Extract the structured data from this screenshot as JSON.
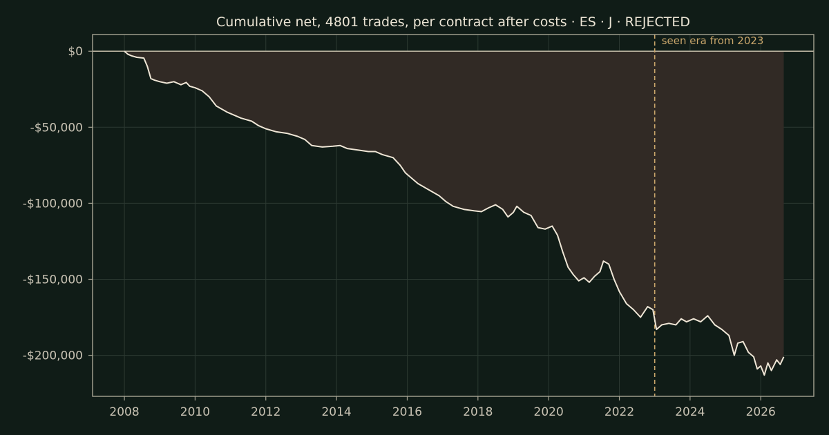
{
  "chart_data": {
    "type": "line",
    "title": "Cumulative net, 4801 trades, per contract after costs  ·  ES · J · REJECTED",
    "xlabel": "",
    "ylabel": "",
    "xlim": [
      2007.1,
      2027.5
    ],
    "ylim": [
      -227000,
      11000
    ],
    "x_ticks": [
      2008,
      2010,
      2012,
      2014,
      2016,
      2018,
      2020,
      2022,
      2024,
      2026
    ],
    "x_tick_labels": [
      "2008",
      "2010",
      "2012",
      "2014",
      "2016",
      "2018",
      "2020",
      "2022",
      "2024",
      "2026"
    ],
    "y_ticks": [
      0,
      -50000,
      -100000,
      -150000,
      -200000
    ],
    "y_tick_labels": [
      "$0",
      "-$50,000",
      "-$100,000",
      "-$150,000",
      "-$200,000"
    ],
    "grid": true,
    "baseline": 0,
    "annotation": {
      "x": 2023.0,
      "text": "seen era from 2023"
    },
    "colors": {
      "background": "#101c17",
      "line": "#efe6d6",
      "fill": "#312a25",
      "grid": "#2c3932",
      "axes": "#a8a595",
      "annotation": "#c9a66b"
    },
    "series": [
      {
        "x": [
          2008.0,
          2008.1,
          2008.2,
          2008.35,
          2008.55,
          2008.65,
          2008.75,
          2008.85,
          2009.0,
          2009.2,
          2009.4,
          2009.6,
          2009.75,
          2009.85,
          2010.0,
          2010.2,
          2010.4,
          2010.6,
          2010.75,
          2010.9,
          2011.1,
          2011.3,
          2011.6,
          2011.8,
          2012.0,
          2012.3,
          2012.6,
          2012.9,
          2013.1,
          2013.3,
          2013.6,
          2013.9,
          2014.1,
          2014.3,
          2014.6,
          2014.9,
          2015.1,
          2015.3,
          2015.6,
          2015.8,
          2015.95,
          2016.1,
          2016.3,
          2016.6,
          2016.9,
          2017.1,
          2017.3,
          2017.6,
          2017.9,
          2018.1,
          2018.3,
          2018.5,
          2018.7,
          2018.85,
          2019.0,
          2019.1,
          2019.3,
          2019.5,
          2019.7,
          2019.9,
          2020.1,
          2020.25,
          2020.4,
          2020.55,
          2020.7,
          2020.85,
          2021.0,
          2021.15,
          2021.3,
          2021.45,
          2021.55,
          2021.7,
          2021.85,
          2022.0,
          2022.2,
          2022.4,
          2022.6,
          2022.8,
          2022.95,
          2023.05,
          2023.2,
          2023.4,
          2023.6,
          2023.75,
          2023.9,
          2024.1,
          2024.3,
          2024.5,
          2024.7,
          2024.9,
          2025.1,
          2025.25,
          2025.35,
          2025.5,
          2025.65,
          2025.8,
          2025.9,
          2026.0,
          2026.1,
          2026.2,
          2026.3,
          2026.45,
          2026.55,
          2026.65
        ],
        "y": [
          0,
          -2000,
          -3000,
          -4000,
          -4500,
          -10000,
          -18000,
          -19000,
          -20000,
          -21000,
          -20000,
          -22000,
          -20500,
          -23000,
          -24000,
          -26000,
          -30000,
          -36000,
          -38000,
          -40000,
          -42000,
          -44000,
          -46000,
          -49000,
          -51000,
          -53000,
          -54000,
          -56000,
          -58000,
          -62000,
          -63000,
          -62500,
          -62000,
          -64000,
          -65000,
          -66000,
          -66000,
          -68000,
          -70000,
          -75000,
          -80000,
          -83000,
          -87000,
          -91000,
          -95000,
          -99000,
          -102000,
          -104000,
          -105000,
          -105500,
          -103000,
          -101000,
          -104000,
          -109000,
          -106000,
          -102000,
          -106000,
          -108000,
          -116000,
          -117000,
          -115000,
          -121000,
          -132000,
          -142000,
          -147000,
          -151000,
          -149000,
          -152000,
          -148000,
          -145000,
          -138000,
          -140000,
          -150000,
          -158000,
          -166000,
          -170000,
          -175000,
          -168000,
          -170000,
          -183000,
          -180000,
          -179000,
          -180000,
          -176000,
          -178000,
          -176000,
          -178000,
          -174000,
          -180000,
          -183000,
          -187000,
          -200000,
          -192000,
          -191000,
          -198000,
          -201000,
          -209000,
          -207000,
          -213000,
          -205000,
          -210000,
          -203000,
          -206000,
          -201000
        ]
      }
    ]
  }
}
